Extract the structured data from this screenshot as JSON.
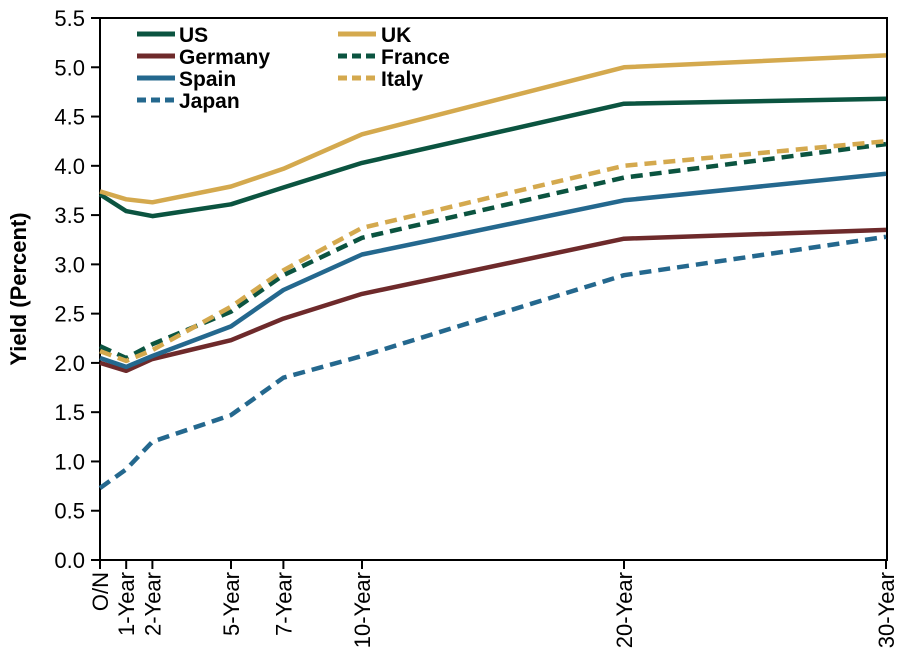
{
  "chart_data": {
    "type": "line",
    "title": "",
    "xlabel": "",
    "ylabel": "Yield (Percent)",
    "ylim": [
      0.0,
      5.5
    ],
    "ytick_step": 0.5,
    "grid": false,
    "legend_position": "top-left-inside",
    "x_years": [
      0,
      1,
      2,
      5,
      7,
      10,
      20,
      30
    ],
    "x_tick_labels": [
      "O/N",
      "1-Year",
      "2-Year",
      "5-Year",
      "7-Year",
      "10-Year",
      "20-Year",
      "30-Year"
    ],
    "series": [
      {
        "name": "US",
        "color": "#0b5440",
        "dash": false,
        "values": [
          3.71,
          3.54,
          3.49,
          3.61,
          3.78,
          4.03,
          4.63,
          4.68
        ]
      },
      {
        "name": "UK",
        "color": "#d4a94e",
        "dash": false,
        "values": [
          3.74,
          3.66,
          3.63,
          3.79,
          3.97,
          4.32,
          5.0,
          5.12
        ]
      },
      {
        "name": "Germany",
        "color": "#6e2a2b",
        "dash": false,
        "values": [
          2.0,
          1.92,
          2.04,
          2.23,
          2.45,
          2.7,
          3.26,
          3.35
        ]
      },
      {
        "name": "France",
        "color": "#0b5440",
        "dash": true,
        "values": [
          2.17,
          2.05,
          2.19,
          2.52,
          2.89,
          3.27,
          3.88,
          4.22
        ]
      },
      {
        "name": "Spain",
        "color": "#24688e",
        "dash": false,
        "values": [
          2.05,
          1.96,
          2.07,
          2.37,
          2.74,
          3.1,
          3.65,
          3.92
        ]
      },
      {
        "name": "Italy",
        "color": "#d4a94e",
        "dash": true,
        "values": [
          2.12,
          2.02,
          2.13,
          2.57,
          2.94,
          3.37,
          4.0,
          4.25
        ]
      },
      {
        "name": "Japan",
        "color": "#24688e",
        "dash": true,
        "values": [
          0.73,
          0.92,
          1.2,
          1.47,
          1.85,
          2.07,
          2.89,
          3.28
        ]
      }
    ],
    "legend": {
      "column1": [
        "US",
        "Germany",
        "Spain",
        "Japan"
      ],
      "column2": [
        "UK",
        "France",
        "Italy"
      ]
    },
    "frame_color": "#000000"
  }
}
